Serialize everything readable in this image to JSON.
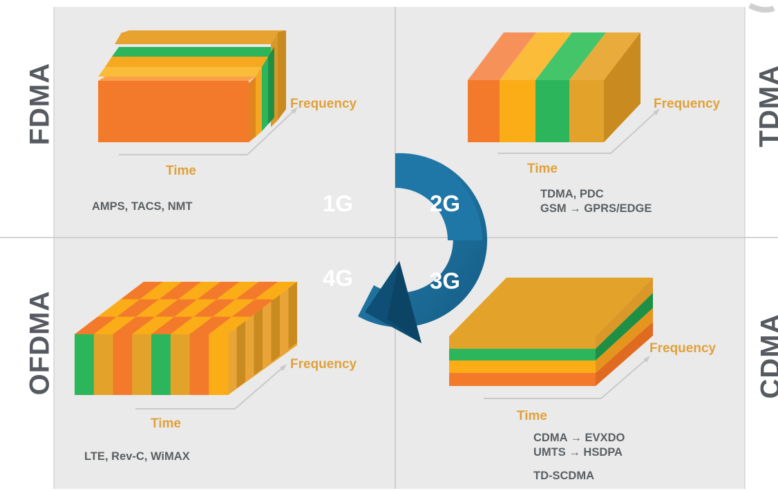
{
  "quadrants": {
    "fdma": {
      "title": "FDMA",
      "frequency_label": "Frequency",
      "time_label": "Time",
      "technologies": [
        "AMPS, TACS, NMT"
      ]
    },
    "tdma": {
      "title": "TDMA",
      "frequency_label": "Frequency",
      "time_label": "Time",
      "technologies": [
        "TDMA, PDC",
        "GSM → GPRS/EDGE"
      ]
    },
    "ofdma": {
      "title": "OFDMA",
      "frequency_label": "Frequency",
      "time_label": "Time",
      "technologies": [
        "LTE, Rev-C, WiMAX"
      ]
    },
    "cdma": {
      "title": "CDMA",
      "frequency_label": "Frequency",
      "time_label": "Time",
      "technologies": [
        "CDMA → EVXDO",
        "UMTS → HSDPA",
        "TD-SCDMA"
      ]
    }
  },
  "generation_cycle": {
    "labels": [
      "1G",
      "2G",
      "3G",
      "4G"
    ]
  },
  "colors": {
    "orange": "#f47a2b",
    "amber": "#fbad18",
    "green": "#2cb55a",
    "gold": "#e3a32b",
    "background": "#eaeaea",
    "cycle_blue": "#1a6d9a",
    "label_gray": "#555b61"
  }
}
